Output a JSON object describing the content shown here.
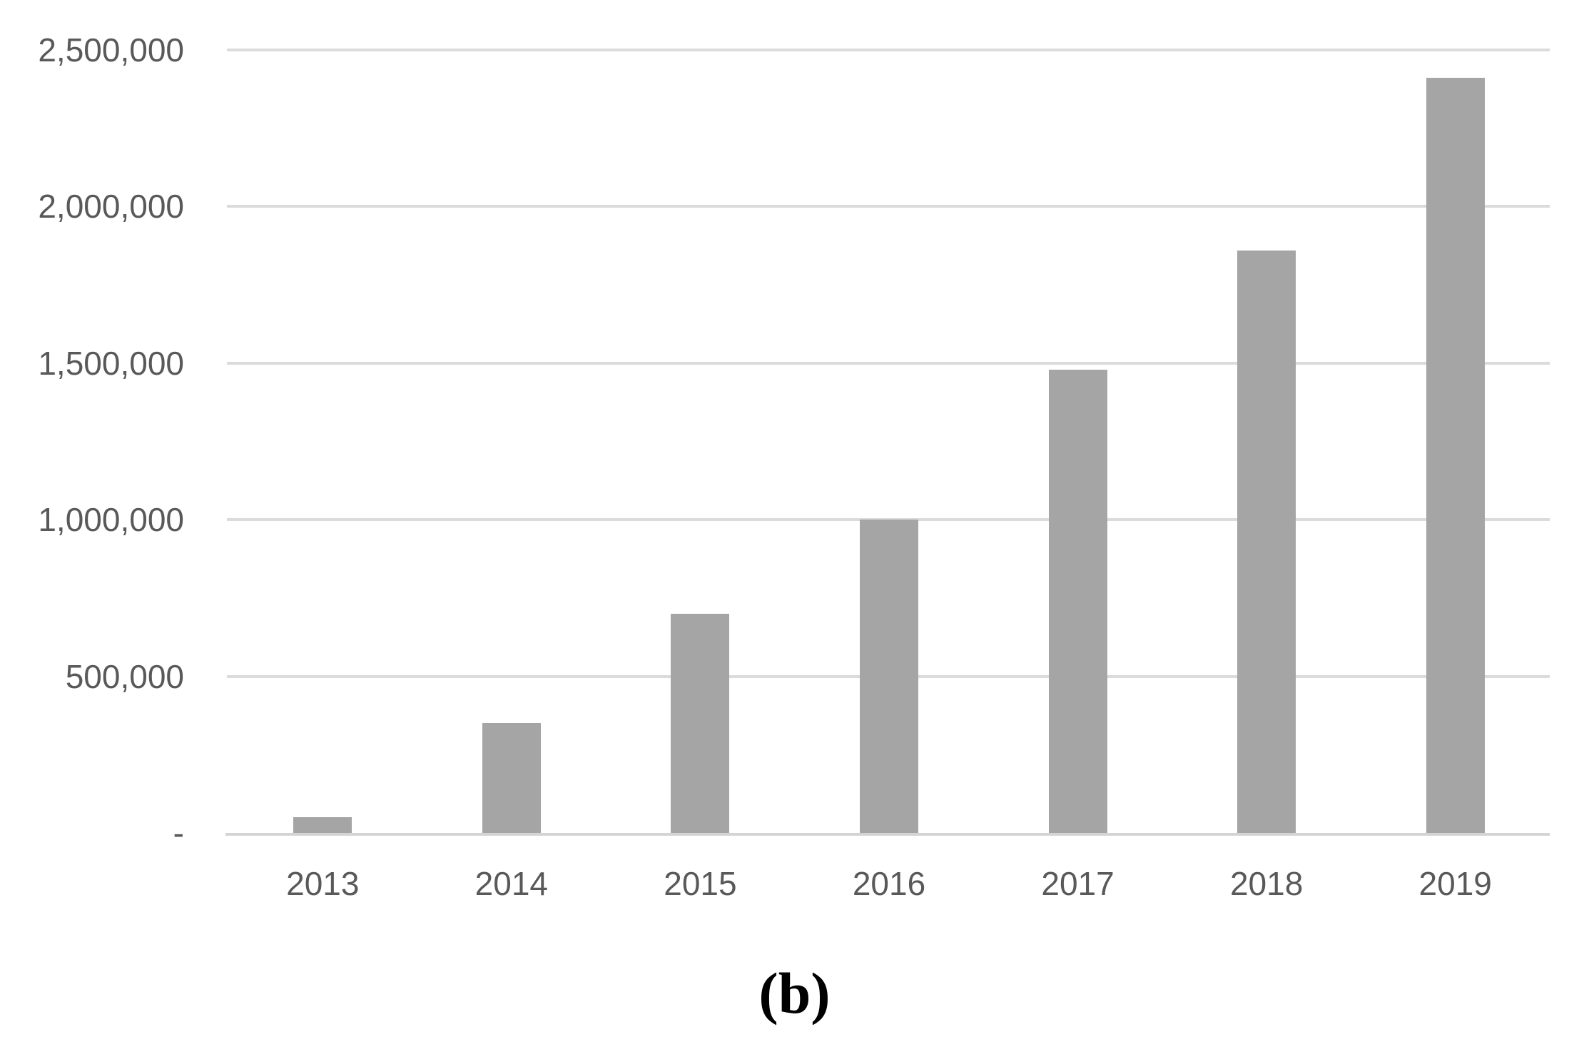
{
  "figure": {
    "caption": "(b)"
  },
  "chart_data": {
    "type": "bar",
    "title": "",
    "xlabel": "",
    "ylabel": "",
    "categories": [
      "2013",
      "2014",
      "2015",
      "2016",
      "2017",
      "2018",
      "2019"
    ],
    "values": [
      50000,
      350000,
      700000,
      1000000,
      1480000,
      1860000,
      2410000
    ],
    "ylim": [
      0,
      2500000
    ],
    "y_ticks": [
      {
        "label": "2,500,000",
        "value": 2500000
      },
      {
        "label": "2,000,000",
        "value": 2000000
      },
      {
        "label": "1,500,000",
        "value": 1500000
      },
      {
        "label": "1,000,000",
        "value": 1000000
      },
      {
        "label": "500,000",
        "value": 500000
      },
      {
        "label": "-",
        "value": 0
      }
    ],
    "grid": true,
    "legend": false,
    "bar_color": "#a5a5a5",
    "gridline_color": "#dbdbdb",
    "axis_line_color": "#d4d4d4",
    "tick_label_color": "#595959"
  }
}
